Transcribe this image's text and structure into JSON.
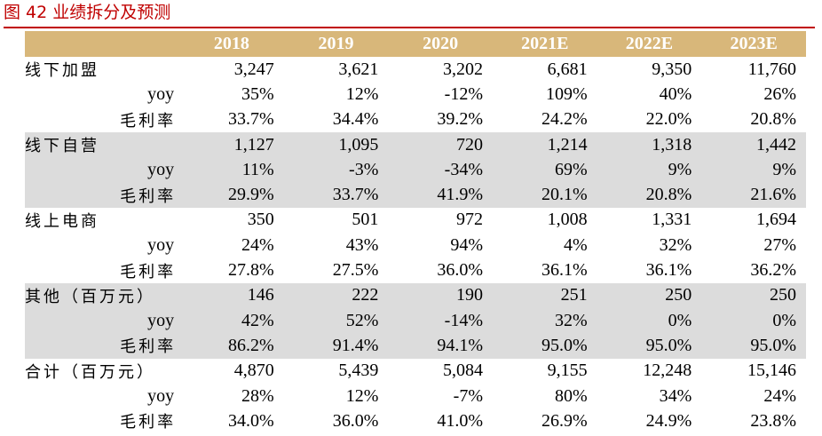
{
  "figure": {
    "title": "图 42  业绩拆分及预测"
  },
  "table": {
    "header": [
      "",
      "2018",
      "2019",
      "2020",
      "2021E",
      "2022E",
      "2023E"
    ],
    "groups": [
      {
        "name": "线下加盟",
        "shaded": false,
        "rows": [
          {
            "label": "线下加盟",
            "values": [
              "3,247",
              "3,621",
              "3,202",
              "6,681",
              "9,350",
              "11,760"
            ]
          },
          {
            "label": "yoy",
            "values": [
              "35%",
              "12%",
              "-12%",
              "109%",
              "40%",
              "26%"
            ]
          },
          {
            "label": "毛利率",
            "values": [
              "33.7%",
              "34.4%",
              "39.2%",
              "24.2%",
              "22.0%",
              "20.8%"
            ]
          }
        ]
      },
      {
        "name": "线下自营",
        "shaded": true,
        "rows": [
          {
            "label": "线下自营",
            "values": [
              "1,127",
              "1,095",
              "720",
              "1,214",
              "1,318",
              "1,442"
            ]
          },
          {
            "label": "yoy",
            "values": [
              "11%",
              "-3%",
              "-34%",
              "69%",
              "9%",
              "9%"
            ]
          },
          {
            "label": "毛利率",
            "values": [
              "29.9%",
              "33.7%",
              "41.9%",
              "20.1%",
              "20.8%",
              "21.6%"
            ]
          }
        ]
      },
      {
        "name": "线上电商",
        "shaded": false,
        "rows": [
          {
            "label": "线上电商",
            "values": [
              "350",
              "501",
              "972",
              "1,008",
              "1,331",
              "1,694"
            ]
          },
          {
            "label": "yoy",
            "values": [
              "24%",
              "43%",
              "94%",
              "4%",
              "32%",
              "27%"
            ]
          },
          {
            "label": "毛利率",
            "values": [
              "27.8%",
              "27.5%",
              "36.0%",
              "36.1%",
              "36.1%",
              "36.2%"
            ]
          }
        ]
      },
      {
        "name": "其他",
        "shaded": true,
        "rows": [
          {
            "label": "其他（百万元）",
            "values": [
              "146",
              "222",
              "190",
              "251",
              "250",
              "250"
            ]
          },
          {
            "label": "yoy",
            "values": [
              "42%",
              "52%",
              "-14%",
              "32%",
              "0%",
              "0%"
            ]
          },
          {
            "label": "毛利率",
            "values": [
              "86.2%",
              "91.4%",
              "94.1%",
              "95.0%",
              "95.0%",
              "95.0%"
            ]
          }
        ]
      },
      {
        "name": "合计",
        "shaded": false,
        "rows": [
          {
            "label": "合计（百万元）",
            "values": [
              "4,870",
              "5,439",
              "5,084",
              "9,155",
              "12,248",
              "15,146"
            ]
          },
          {
            "label": "yoy",
            "values": [
              "28%",
              "12%",
              "-7%",
              "80%",
              "34%",
              "24%"
            ]
          },
          {
            "label": "毛利率",
            "values": [
              "34.0%",
              "36.0%",
              "41.0%",
              "26.9%",
              "24.9%",
              "23.8%"
            ]
          }
        ]
      }
    ]
  },
  "colors": {
    "title_red": "#c00000",
    "header_gold": "#d8b77a",
    "shade_gray": "#dcdcdc"
  }
}
